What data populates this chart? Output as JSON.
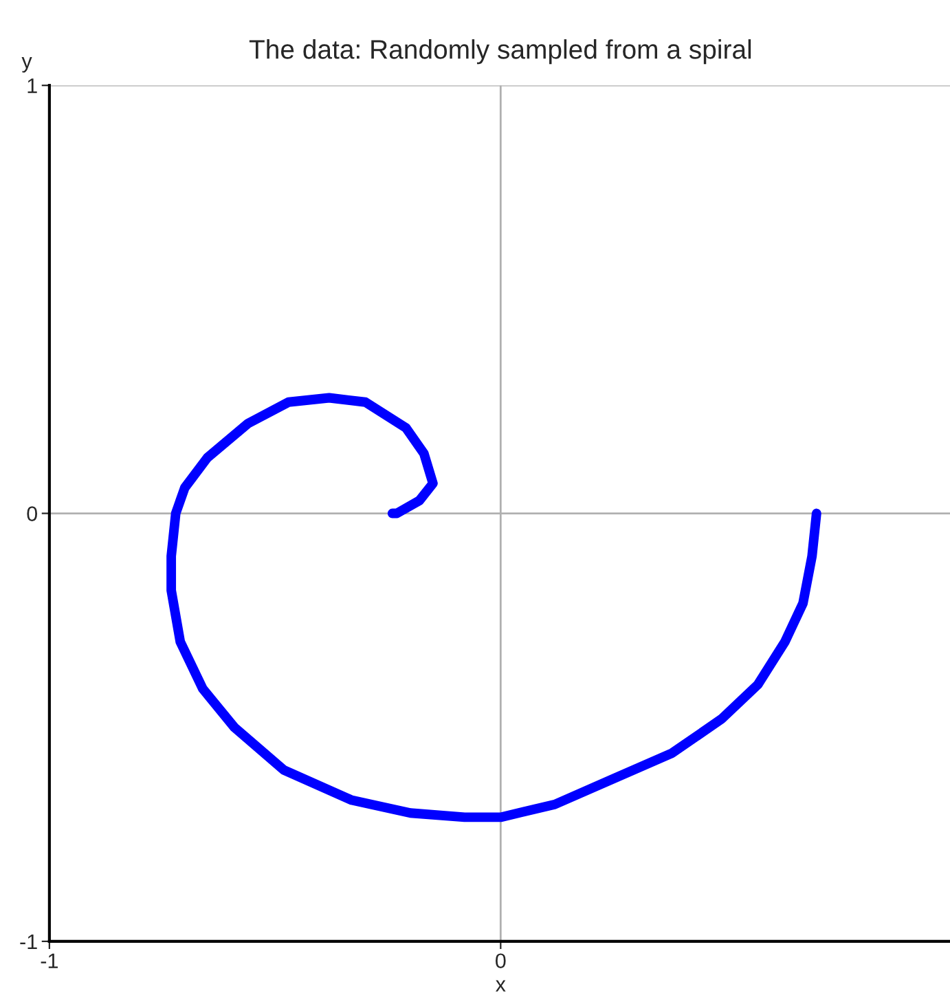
{
  "chart_data": {
    "type": "line",
    "title": "The data: Randomly sampled from a spiral",
    "xlabel": "x",
    "ylabel": "y",
    "xlim": [
      -1,
      1
    ],
    "ylim": [
      -1,
      1
    ],
    "xticks": [
      -1,
      0
    ],
    "yticks": [
      -1,
      0,
      1
    ],
    "grid": true,
    "marker": "none",
    "line_style": "solid",
    "series": [
      {
        "color": "#0000ff",
        "x": [
          0.7,
          0.69,
          0.67,
          0.63,
          0.57,
          0.49,
          0.38,
          0.25,
          0.12,
          0.0,
          -0.08,
          -0.2,
          -0.33,
          -0.48,
          -0.59,
          -0.66,
          -0.71,
          -0.73,
          -0.73,
          -0.72,
          -0.7,
          -0.65,
          -0.56,
          -0.47,
          -0.38,
          -0.3,
          -0.21,
          -0.17,
          -0.15,
          -0.18,
          -0.23,
          -0.24
        ],
        "values": [
          0.0,
          -0.1,
          -0.21,
          -0.3,
          -0.4,
          -0.48,
          -0.56,
          -0.62,
          -0.68,
          -0.71,
          -0.71,
          -0.7,
          -0.67,
          -0.6,
          -0.5,
          -0.41,
          -0.3,
          -0.18,
          -0.1,
          0.0,
          0.06,
          0.13,
          0.21,
          0.26,
          0.27,
          0.26,
          0.2,
          0.14,
          0.07,
          0.03,
          0.0,
          0.0
        ]
      }
    ]
  }
}
